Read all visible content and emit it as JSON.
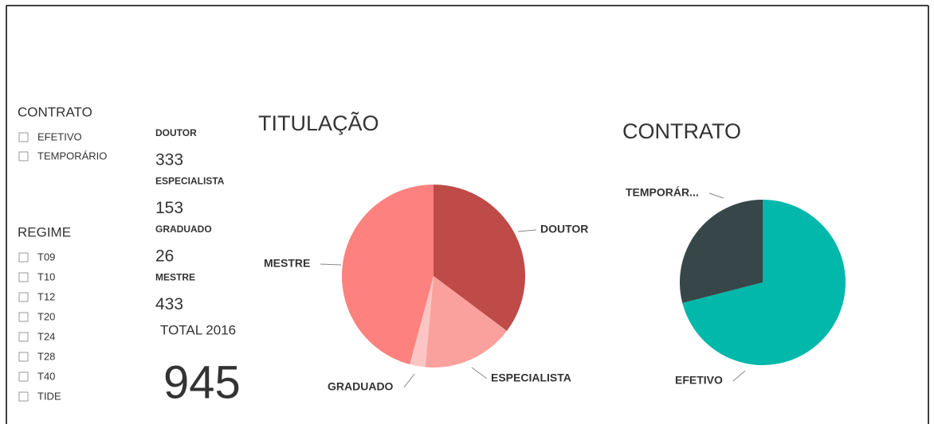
{
  "slicers": [
    {
      "title": "CONTRATO",
      "items": [
        "EFETIVO",
        "TEMPORÁRIO"
      ]
    },
    {
      "title": "REGIME",
      "items": [
        "T09",
        "T10",
        "T12",
        "T20",
        "T24",
        "T28",
        "T40",
        "TIDE"
      ]
    }
  ],
  "cards": [
    {
      "label": "DOUTOR",
      "value": 333
    },
    {
      "label": "ESPECIALISTA",
      "value": 153
    },
    {
      "label": "GRADUADO",
      "value": 26
    },
    {
      "label": "MESTRE",
      "value": 433
    }
  ],
  "total": {
    "label": "TOTAL 2016",
    "value": 945
  },
  "chart_data": [
    {
      "type": "pie",
      "title": "TITULAÇÃO",
      "categories": [
        "DOUTOR",
        "ESPECIALISTA",
        "GRADUADO",
        "MESTRE"
      ],
      "values": [
        333,
        153,
        26,
        433
      ],
      "colors": [
        "#be4b48",
        "#fba19d",
        "#fcc5c3",
        "#fd817e"
      ]
    },
    {
      "type": "pie",
      "title": "CONTRATO",
      "categories": [
        "EFETIVO",
        "TEMPORÁR..."
      ],
      "values": [
        71,
        29
      ],
      "colors": [
        "#01b8aa",
        "#374649"
      ]
    }
  ]
}
